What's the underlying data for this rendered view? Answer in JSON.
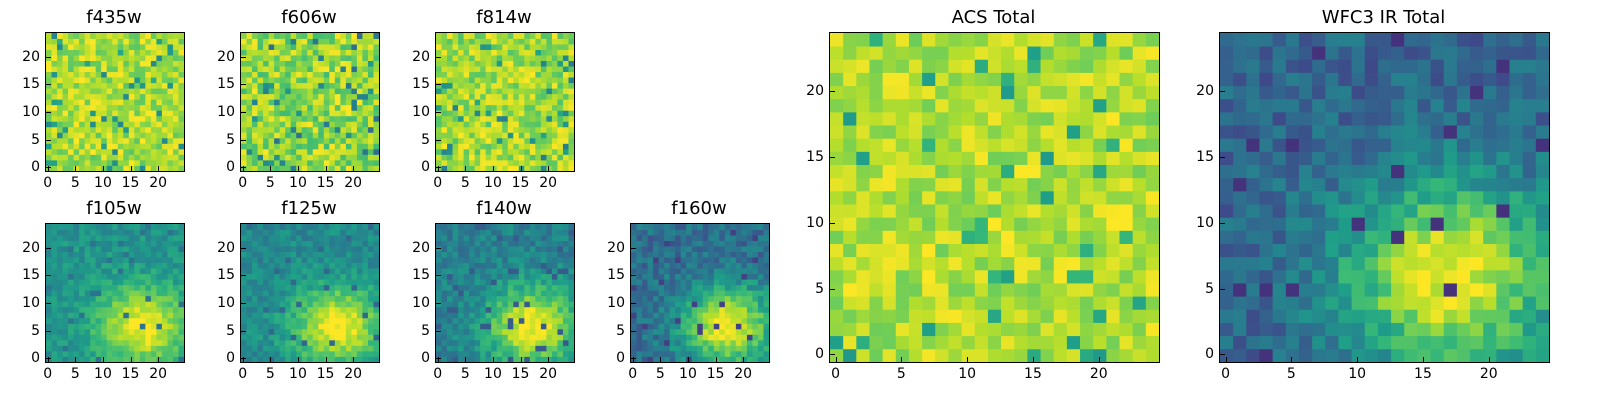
{
  "chart_data": [
    {
      "type": "heatmap",
      "title": "f435w",
      "xlim": [
        -0.5,
        24.5
      ],
      "ylim": [
        -0.5,
        24.5
      ],
      "xticks": [
        0,
        5,
        10,
        15,
        20
      ],
      "yticks": [
        0,
        5,
        10,
        15,
        20
      ],
      "colormap": "viridis",
      "texture": "noisy",
      "cmin": 0.42,
      "cmax": 1.0,
      "seed": 11
    },
    {
      "type": "heatmap",
      "title": "f606w",
      "xlim": [
        -0.5,
        24.5
      ],
      "ylim": [
        -0.5,
        24.5
      ],
      "xticks": [
        0,
        5,
        10,
        15,
        20
      ],
      "yticks": [
        0,
        5,
        10,
        15,
        20
      ],
      "colormap": "viridis",
      "texture": "noisy",
      "cmin": 0.3,
      "cmax": 1.0,
      "seed": 23
    },
    {
      "type": "heatmap",
      "title": "f814w",
      "xlim": [
        -0.5,
        24.5
      ],
      "ylim": [
        -0.5,
        24.5
      ],
      "xticks": [
        0,
        5,
        10,
        15,
        20
      ],
      "yticks": [
        0,
        5,
        10,
        15,
        20
      ],
      "colormap": "viridis",
      "texture": "noisy",
      "cmin": 0.38,
      "cmax": 1.0,
      "seed": 37
    },
    {
      "type": "heatmap",
      "title": "f105w",
      "xlim": [
        -0.5,
        24.5
      ],
      "ylim": [
        -0.5,
        24.5
      ],
      "xticks": [
        0,
        5,
        10,
        15,
        20
      ],
      "yticks": [
        0,
        5,
        10,
        15,
        20
      ],
      "colormap": "viridis",
      "texture": "blob",
      "cmin": 0.35,
      "cmax": 1.0,
      "seed": 41
    },
    {
      "type": "heatmap",
      "title": "f125w",
      "xlim": [
        -0.5,
        24.5
      ],
      "ylim": [
        -0.5,
        24.5
      ],
      "xticks": [
        0,
        5,
        10,
        15,
        20
      ],
      "yticks": [
        0,
        5,
        10,
        15,
        20
      ],
      "colormap": "viridis",
      "texture": "blob",
      "cmin": 0.3,
      "cmax": 1.0,
      "seed": 53
    },
    {
      "type": "heatmap",
      "title": "f140w",
      "xlim": [
        -0.5,
        24.5
      ],
      "ylim": [
        -0.5,
        24.5
      ],
      "xticks": [
        0,
        5,
        10,
        15,
        20
      ],
      "yticks": [
        0,
        5,
        10,
        15,
        20
      ],
      "colormap": "viridis",
      "texture": "blob",
      "cmin": 0.25,
      "cmax": 1.0,
      "seed": 67
    },
    {
      "type": "heatmap",
      "title": "f160w",
      "xlim": [
        -0.5,
        24.5
      ],
      "ylim": [
        -0.5,
        24.5
      ],
      "xticks": [
        0,
        5,
        10,
        15,
        20
      ],
      "yticks": [
        0,
        5,
        10,
        15,
        20
      ],
      "colormap": "viridis",
      "texture": "blob",
      "cmin": 0.15,
      "cmax": 1.0,
      "seed": 79
    },
    {
      "type": "heatmap",
      "title": "ACS Total",
      "xlim": [
        -0.5,
        24.5
      ],
      "ylim": [
        -0.5,
        24.5
      ],
      "xticks": [
        0,
        5,
        10,
        15,
        20
      ],
      "yticks": [
        0,
        5,
        10,
        15,
        20
      ],
      "colormap": "viridis",
      "texture": "noisy",
      "cmin": 0.5,
      "cmax": 1.0,
      "seed": 91
    },
    {
      "type": "heatmap",
      "title": "WFC3 IR Total",
      "xlim": [
        -0.5,
        24.5
      ],
      "ylim": [
        -0.5,
        24.5
      ],
      "xticks": [
        0,
        5,
        10,
        15,
        20
      ],
      "yticks": [
        0,
        5,
        10,
        15,
        20
      ],
      "colormap": "viridis",
      "texture": "blob",
      "cmin": 0.1,
      "cmax": 1.0,
      "seed": 103
    }
  ]
}
